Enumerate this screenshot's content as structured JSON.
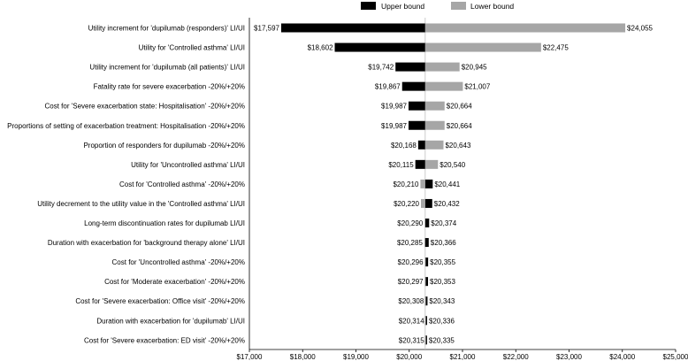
{
  "chart_data": {
    "type": "bar",
    "orientation": "horizontal",
    "subtype": "tornado",
    "title": "",
    "xlabel": "",
    "ylabel": "",
    "base_value": 20300,
    "xlim": [
      17000,
      25000
    ],
    "x_ticks": [
      17000,
      18000,
      19000,
      20000,
      21000,
      22000,
      23000,
      24000,
      25000
    ],
    "x_tick_labels": [
      "$17,000",
      "$18,000",
      "$19,000",
      "$20,000",
      "$21,000",
      "$22,000",
      "$23,000",
      "$24,000",
      "$25,000"
    ],
    "grid": false,
    "legend_position": "top",
    "legend": [
      {
        "name": "Upper bound",
        "color": "#000000"
      },
      {
        "name": "Lower bound",
        "color": "#a6a6a6"
      }
    ],
    "categories": [
      "Utility increment for 'dupilumab (responders)' LI/UI",
      "Utility for 'Controlled asthma' LI/UI",
      "Utility increment for 'dupilumab (all patients)' LI/UI",
      "Fatality rate for severe exacerbation -20%/+20%",
      "Cost for 'Severe exacerbation state: Hospitalisation' -20%/+20%",
      "Proportions of setting of exacerbation treatment: Hospitalisation -20%/+20%",
      "Proportion of responders for dupilumab -20%/+20%",
      "Utility for 'Uncontrolled asthma' LI/UI",
      "Cost for 'Controlled asthma' -20%/+20%",
      "Utility decrement to the utility value in the 'Controlled asthma' LI/UI",
      "Long-term discontinuation rates for dupilumab LI/UI",
      "Duration with exacerbation for 'background therapy alone' LI/UI",
      "Cost for 'Uncontrolled asthma' -20%/+20%",
      "Cost for 'Moderate exacerbation' -20%/+20%",
      "Cost for 'Severe exacerbation: Office visit' -20%/+20%",
      "Duration with exacerbation for 'dupilumab' LI/UI",
      "Cost for 'Severe exacerbation: ED visit' -20%/+20%"
    ],
    "series": [
      {
        "name": "Upper bound",
        "color": "#000000",
        "values": [
          17597,
          18602,
          19742,
          19867,
          19987,
          19987,
          20168,
          20115,
          20441,
          20432,
          20374,
          20366,
          20355,
          20353,
          20343,
          20336,
          20335
        ]
      },
      {
        "name": "Lower bound",
        "color": "#a6a6a6",
        "values": [
          24055,
          22475,
          20945,
          21007,
          20664,
          20664,
          20643,
          20540,
          20210,
          20220,
          20290,
          20285,
          20296,
          20297,
          20308,
          20314,
          20315
        ]
      }
    ],
    "left_labels": [
      "$17,597",
      "$18,602",
      "$19,742",
      "$19,867",
      "$19,987",
      "$19,987",
      "$20,168",
      "$20,115",
      "$20,210",
      "$20,220",
      "$20,290",
      "$20,285",
      "$20,296",
      "$20,297",
      "$20,308",
      "$20,314",
      "$20,315"
    ],
    "right_labels": [
      "$24,055",
      "$22,475",
      "$20,945",
      "$21,007",
      "$20,664",
      "$20,664",
      "$20,643",
      "$20,540",
      "$20,441",
      "$20,432",
      "$20,374",
      "$20,366",
      "$20,355",
      "$20,353",
      "$20,343",
      "$20,336",
      "$20,335"
    ]
  }
}
